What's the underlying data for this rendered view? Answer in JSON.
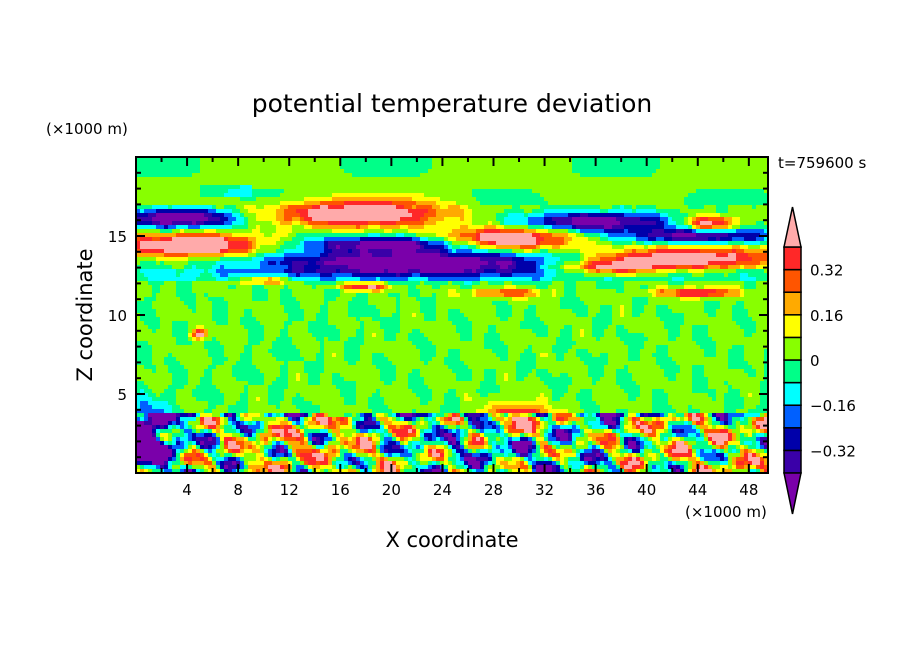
{
  "chart_data": {
    "type": "heatmap",
    "title": "potential temperature deviation",
    "xlabel": "X coordinate",
    "ylabel": "Z coordinate",
    "x_unit_label": "(×1000 m)",
    "y_unit_label": "(×1000 m)",
    "time_label": "t=759600 s",
    "xlim": [
      0,
      49.5
    ],
    "ylim": [
      0,
      20
    ],
    "x_ticks": [
      "4",
      "8",
      "12",
      "16",
      "20",
      "24",
      "28",
      "32",
      "36",
      "40",
      "44",
      "48"
    ],
    "x_tick_values": [
      4,
      8,
      12,
      16,
      20,
      24,
      28,
      32,
      36,
      40,
      44,
      48
    ],
    "y_ticks": [
      "5",
      "10",
      "15"
    ],
    "y_tick_values": [
      5,
      10,
      15
    ],
    "levels": [
      -0.4,
      -0.32,
      -0.24,
      -0.16,
      -0.08,
      0,
      0.08,
      0.16,
      0.24,
      0.32,
      0.4
    ],
    "colorbar_labels": [
      "0.32",
      "0.16",
      "0",
      "−0.16",
      "−0.32"
    ],
    "colorbar_label_values": [
      0.32,
      0.16,
      0,
      -0.16,
      -0.32
    ],
    "colors": [
      "#7a00aa",
      "#3a00a8",
      "#0000aa",
      "#0060ff",
      "#00ffff",
      "#00ff88",
      "#88ff00",
      "#ffff00",
      "#ffaa00",
      "#ff5500",
      "#ff2828",
      "#ffaaaa"
    ],
    "features": [
      {
        "x": 4.5,
        "z": 14.4,
        "sx": 5.5,
        "sz": 0.75,
        "amp": 0.6
      },
      {
        "x": 17.5,
        "z": 16.4,
        "sx": 6.5,
        "sz": 0.8,
        "amp": 0.6
      },
      {
        "x": 29,
        "z": 14.8,
        "sx": 5,
        "sz": 0.7,
        "amp": 0.6
      },
      {
        "x": 43,
        "z": 13.6,
        "sx": 7,
        "sz": 0.7,
        "amp": 0.55
      },
      {
        "x": 37,
        "z": 13.0,
        "sx": 4,
        "sz": 0.5,
        "amp": 0.45
      },
      {
        "x": 44,
        "z": 11.4,
        "sx": 3,
        "sz": 0.3,
        "amp": 0.45
      },
      {
        "x": 45,
        "z": 15.8,
        "sx": 2,
        "sz": 0.5,
        "amp": 0.5
      },
      {
        "x": 3.5,
        "z": 16.1,
        "sx": 4.5,
        "sz": 0.6,
        "amp": -0.55
      },
      {
        "x": 22,
        "z": 13.3,
        "sx": 13,
        "sz": 0.8,
        "amp": -0.55
      },
      {
        "x": 20,
        "z": 14.5,
        "sx": 7,
        "sz": 0.5,
        "amp": -0.45
      },
      {
        "x": 36,
        "z": 15.9,
        "sx": 6,
        "sz": 0.6,
        "amp": -0.5
      },
      {
        "x": 44,
        "z": 15.0,
        "sx": 6,
        "sz": 0.5,
        "amp": -0.45
      },
      {
        "x": 18,
        "z": 11.8,
        "sx": 2,
        "sz": 0.25,
        "amp": 0.4
      },
      {
        "x": 29,
        "z": 11.4,
        "sx": 3,
        "sz": 0.3,
        "amp": 0.3
      },
      {
        "x": 5,
        "z": 8.8,
        "sx": 0.6,
        "sz": 0.3,
        "amp": 0.45
      },
      {
        "x": 10,
        "z": 12.2,
        "sx": 2,
        "sz": 0.25,
        "amp": 0.3
      },
      {
        "x": 30,
        "z": 3.5,
        "sx": 2.5,
        "sz": 0.8,
        "amp": 0.5
      },
      {
        "x": 1,
        "z": 2,
        "sx": 1.5,
        "sz": 2,
        "amp": -0.6
      }
    ]
  }
}
